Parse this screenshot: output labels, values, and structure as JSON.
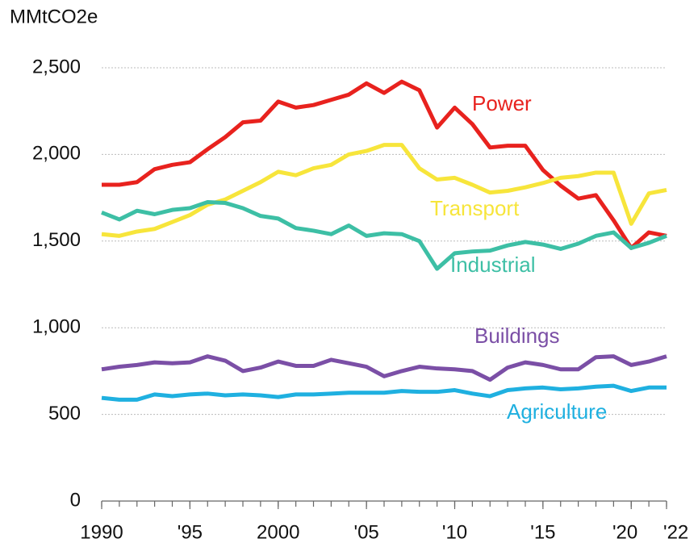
{
  "chart_data": {
    "type": "line",
    "y_label": "MMtCO2e",
    "x": [
      1990,
      1991,
      1992,
      1993,
      1994,
      1995,
      1996,
      1997,
      1998,
      1999,
      2000,
      2001,
      2002,
      2003,
      2004,
      2005,
      2006,
      2007,
      2008,
      2009,
      2010,
      2011,
      2012,
      2013,
      2014,
      2015,
      2016,
      2017,
      2018,
      2019,
      2020,
      2021,
      2022
    ],
    "series": [
      {
        "name": "Power",
        "color": "#e8221e",
        "values": [
          1825,
          1825,
          1840,
          1915,
          1940,
          1955,
          2030,
          2100,
          2185,
          2195,
          2305,
          2270,
          2285,
          2315,
          2345,
          2410,
          2355,
          2420,
          2370,
          2155,
          2270,
          2175,
          2040,
          2050,
          2050,
          1910,
          1820,
          1745,
          1765,
          1620,
          1460,
          1550,
          1530
        ]
      },
      {
        "name": "Transport",
        "color": "#f7e53b",
        "values": [
          1540,
          1530,
          1555,
          1570,
          1610,
          1650,
          1710,
          1740,
          1790,
          1840,
          1900,
          1880,
          1920,
          1940,
          2000,
          2020,
          2055,
          2055,
          1920,
          1855,
          1865,
          1825,
          1780,
          1790,
          1810,
          1835,
          1865,
          1875,
          1895,
          1895,
          1600,
          1775,
          1795
        ]
      },
      {
        "name": "Industrial",
        "color": "#3dbfa5",
        "values": [
          1665,
          1625,
          1675,
          1655,
          1680,
          1690,
          1725,
          1720,
          1690,
          1645,
          1630,
          1575,
          1560,
          1540,
          1590,
          1530,
          1545,
          1540,
          1500,
          1340,
          1430,
          1440,
          1445,
          1475,
          1495,
          1480,
          1455,
          1485,
          1530,
          1550,
          1460,
          1490,
          1530
        ]
      },
      {
        "name": "Buildings",
        "color": "#7b4fa6",
        "values": [
          760,
          775,
          785,
          800,
          795,
          800,
          835,
          810,
          750,
          770,
          805,
          780,
          780,
          815,
          795,
          775,
          720,
          750,
          775,
          765,
          760,
          750,
          700,
          770,
          800,
          785,
          760,
          760,
          830,
          835,
          785,
          805,
          835
        ]
      },
      {
        "name": "Agriculture",
        "color": "#1fb0e0",
        "values": [
          595,
          585,
          585,
          615,
          605,
          615,
          620,
          610,
          615,
          610,
          600,
          615,
          615,
          620,
          625,
          625,
          625,
          635,
          630,
          630,
          640,
          620,
          605,
          640,
          650,
          655,
          645,
          650,
          660,
          665,
          635,
          655,
          655
        ]
      }
    ],
    "xlim": [
      1990,
      2022
    ],
    "xticks": [
      1990,
      {
        "value": 1995,
        "label": "'95"
      },
      2000,
      {
        "value": 2005,
        "label": "'05"
      },
      {
        "value": 2010,
        "label": "'10"
      },
      {
        "value": 2015,
        "label": "'15"
      },
      {
        "value": 2020,
        "label": "'20"
      },
      {
        "value": 2022,
        "label": "'22"
      }
    ],
    "ylim": [
      0,
      2500
    ],
    "yticks": [
      0,
      500,
      {
        "value": 1000,
        "label": "1,000"
      },
      {
        "value": 1500,
        "label": "1,500"
      },
      {
        "value": 2000,
        "label": "2,000"
      },
      {
        "value": 2500,
        "label": "2,500"
      }
    ],
    "grid": true
  }
}
